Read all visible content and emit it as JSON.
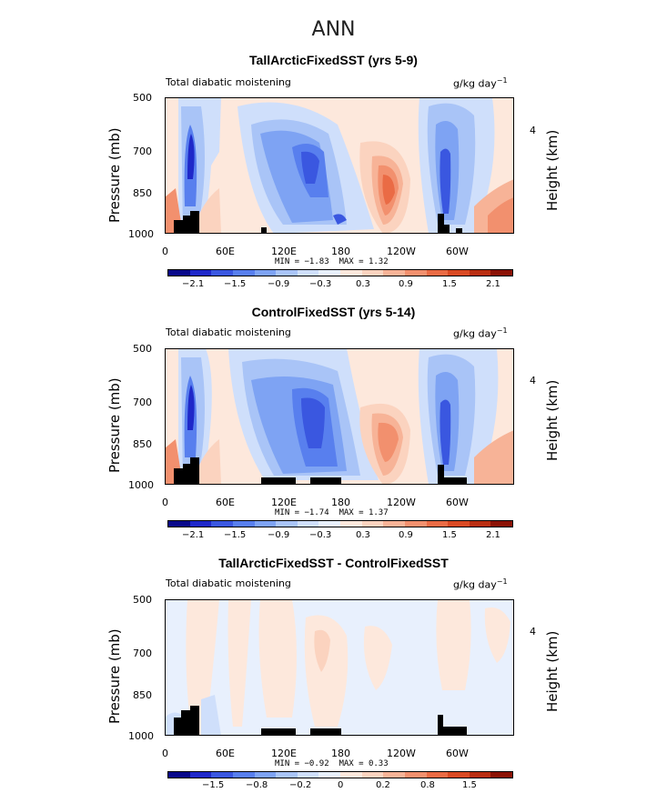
{
  "main_title": "ANN",
  "colors": {
    "scale": [
      "#08088a",
      "#1f28c9",
      "#3a57e0",
      "#587fee",
      "#7ea3f3",
      "#a9c4f7",
      "#cfdffb",
      "#e8f0fd",
      "#fde8dc",
      "#fbd3bf",
      "#f7b397",
      "#f2906e",
      "#ea6b45",
      "#d94a24",
      "#b92e12",
      "#8b1205"
    ],
    "terrain": "#000000"
  },
  "chart_data": [
    {
      "type": "heatmap",
      "title": "TallArcticFixedSST (yrs 5-9)",
      "left_label": "Total diabatic moistening",
      "units": "g/kg day",
      "units_sup": "−1",
      "ylabel": "Pressure (mb)",
      "ylabel_right": "Height (km)",
      "yticks": [
        "500",
        "700",
        "850",
        "1000"
      ],
      "yticks_right": [
        "4"
      ],
      "xticks": [
        "0",
        "60E",
        "120E",
        "180",
        "120W",
        "60W"
      ],
      "min_label": "MIN =",
      "min": "−1.83",
      "max_label": "MAX =",
      "max": "1.32",
      "colorbar_labels": [
        "−2.1",
        "−1.5",
        "−0.9",
        "−0.3",
        "0.3",
        "0.9",
        "1.5",
        "2.1"
      ]
    },
    {
      "type": "heatmap",
      "title": "ControlFixedSST (yrs 5-14)",
      "left_label": "Total diabatic moistening",
      "units": "g/kg day",
      "units_sup": "−1",
      "ylabel": "Pressure (mb)",
      "ylabel_right": "Height (km)",
      "yticks": [
        "500",
        "700",
        "850",
        "1000"
      ],
      "yticks_right": [
        "4"
      ],
      "xticks": [
        "0",
        "60E",
        "120E",
        "180",
        "120W",
        "60W"
      ],
      "min_label": "MIN =",
      "min": "−1.74",
      "max_label": "MAX =",
      "max": "1.37",
      "colorbar_labels": [
        "−2.1",
        "−1.5",
        "−0.9",
        "−0.3",
        "0.3",
        "0.9",
        "1.5",
        "2.1"
      ]
    },
    {
      "type": "heatmap",
      "title": "TallArcticFixedSST - ControlFixedSST",
      "left_label": "Total diabatic moistening",
      "units": "g/kg day",
      "units_sup": "−1",
      "ylabel": "Pressure (mb)",
      "ylabel_right": "Height (km)",
      "yticks": [
        "500",
        "700",
        "850",
        "1000"
      ],
      "yticks_right": [
        "4"
      ],
      "xticks": [
        "0",
        "60E",
        "120E",
        "180",
        "120W",
        "60W"
      ],
      "min_label": "MIN =",
      "min": "−0.92",
      "max_label": "MAX =",
      "max": "0.33",
      "colorbar_labels": [
        "−1.5",
        "−0.8",
        "−0.2",
        "0",
        "0.2",
        "0.8",
        "1.5"
      ]
    }
  ]
}
